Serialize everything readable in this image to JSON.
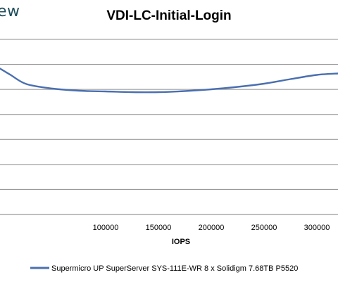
{
  "logo_text": "ew",
  "chart_data": {
    "type": "line",
    "title": "VDI-LC-Initial-Login",
    "xlabel": "IOPS",
    "ylabel": "",
    "xlim": [
      0,
      320000
    ],
    "x_ticks": [
      {
        "value": 100000,
        "label": "100000"
      },
      {
        "value": 150000,
        "label": "150000"
      },
      {
        "value": 200000,
        "label": "200000"
      },
      {
        "value": 250000,
        "label": "250000"
      },
      {
        "value": 300000,
        "label": "300000"
      }
    ],
    "y_gridlines": 8,
    "grid": true,
    "legend_position": "bottom",
    "series": [
      {
        "name": "Supermicro UP SuperServer SYS-111E-WR 8 x Solidigm 7.68TB P5520",
        "color": "#4a6fb0",
        "points_relative": [
          [
            0,
            0.65
          ],
          [
            10000,
            0.47
          ],
          [
            25000,
            0.21
          ],
          [
            50000,
            0.08
          ],
          [
            75000,
            0.02
          ],
          [
            100000,
            0.0
          ],
          [
            125000,
            -0.02
          ],
          [
            150000,
            -0.02
          ],
          [
            175000,
            0.01
          ],
          [
            200000,
            0.06
          ],
          [
            225000,
            0.13
          ],
          [
            250000,
            0.22
          ],
          [
            275000,
            0.35
          ],
          [
            300000,
            0.47
          ],
          [
            320000,
            0.51
          ]
        ]
      }
    ]
  }
}
